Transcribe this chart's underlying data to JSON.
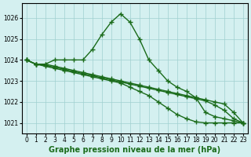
{
  "title": "Graphe pression niveau de la mer (hPa)",
  "background_color": "#d4f0f0",
  "grid_color": "#a0d0d0",
  "line_color": "#1a6b1a",
  "x_labels": [
    "0",
    "1",
    "2",
    "3",
    "4",
    "5",
    "6",
    "7",
    "8",
    "9",
    "10",
    "11",
    "12",
    "13",
    "14",
    "15",
    "16",
    "17",
    "18",
    "19",
    "20",
    "21",
    "22",
    "23"
  ],
  "series": [
    [
      1024.0,
      1023.8,
      1023.8,
      1024.0,
      1024.0,
      1024.0,
      1024.0,
      1024.5,
      1025.2,
      1025.8,
      1026.2,
      1025.8,
      1025.0,
      1024.0,
      1023.5,
      1023.0,
      1022.7,
      1022.5,
      1022.2,
      1021.5,
      1021.3,
      1021.2,
      1021.1,
      1021.0
    ],
    [
      1024.0,
      1023.8,
      1023.8,
      1023.7,
      1023.6,
      1023.5,
      1023.4,
      1023.3,
      1023.2,
      1023.1,
      1023.0,
      1022.9,
      1022.8,
      1022.7,
      1022.6,
      1022.5,
      1022.4,
      1022.3,
      1022.2,
      1022.1,
      1022.0,
      1021.9,
      1021.5,
      1021.0
    ],
    [
      1024.0,
      1023.8,
      1023.75,
      1023.65,
      1023.55,
      1023.45,
      1023.35,
      1023.25,
      1023.15,
      1023.05,
      1022.95,
      1022.85,
      1022.75,
      1022.65,
      1022.55,
      1022.45,
      1022.35,
      1022.25,
      1022.15,
      1022.05,
      1021.85,
      1021.6,
      1021.2,
      1021.0
    ],
    [
      1024.0,
      1023.8,
      1023.7,
      1023.6,
      1023.5,
      1023.4,
      1023.3,
      1023.2,
      1023.1,
      1023.0,
      1022.9,
      1022.7,
      1022.5,
      1022.3,
      1022.0,
      1021.7,
      1021.4,
      1021.2,
      1021.05,
      1021.0,
      1021.0,
      1021.0,
      1021.0,
      1021.0
    ]
  ],
  "ylim": [
    1020.5,
    1026.7
  ],
  "yticks": [
    1021,
    1022,
    1023,
    1024,
    1025,
    1026
  ],
  "marker": "+",
  "marker_size": 4,
  "linewidth": 1.0,
  "title_fontsize": 7,
  "tick_fontsize": 5.5
}
